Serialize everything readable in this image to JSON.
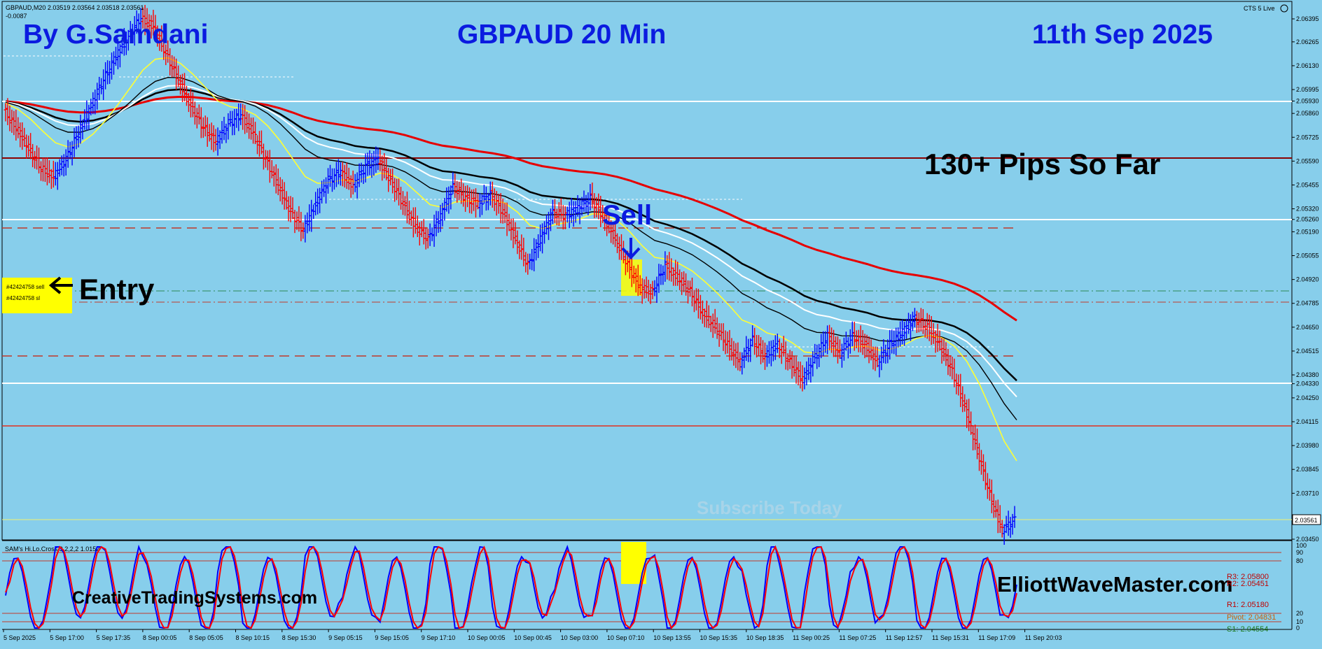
{
  "header": {
    "symbol_info": "GBPAUD,M20  2.03519 2.03564 2.03518 2.03561",
    "sub_info": "-0.0087",
    "broker_label": "CTS 5 Live"
  },
  "overlay": {
    "author": "By G.Samdani",
    "chart_title": "GBPAUD 20 Min",
    "date": "11th Sep 2025",
    "pips": "130+ Pips So Far",
    "sell_label": "Sell",
    "entry_label": "Entry",
    "order_sell": "#42424758 sell",
    "order_sl": "#42424758 sl",
    "watermark": "Subscribe Today",
    "site1": "CreativeTradingSystems.com",
    "site2": "ElliottWaveMaster.com"
  },
  "indicator": {
    "label": "SAM's Hi.Lo.Cross 3,2,2,2 1.0152",
    "scale_labels": [
      "100",
      "90",
      "80",
      "20",
      "10",
      "0"
    ],
    "legend_labels": [
      "R3: 2.05800",
      "R2: 2.05451",
      "R1: 2.05180",
      "Pivot: 2.04831",
      "S1: 2.04554"
    ],
    "colors": {
      "blue": "#0000FF",
      "red": "#FF0000"
    }
  },
  "price_axis": {
    "labels": [
      "2.06395",
      "2.06265",
      "2.06130",
      "2.05995",
      "2.05930",
      "2.05860",
      "2.05725",
      "2.05590",
      "2.05455",
      "2.05320",
      "2.05260",
      "2.05190",
      "2.05055",
      "2.04920",
      "2.04785",
      "2.04650",
      "2.04515",
      "2.04380",
      "2.04330",
      "2.04250",
      "2.04115",
      "2.03980",
      "2.03845",
      "2.03710",
      "2.03561",
      "2.03450"
    ],
    "current_price": "2.03561"
  },
  "time_axis": {
    "labels": [
      "5 Sep 2025",
      "5 Sep 17:00",
      "5 Sep 17:35",
      "8 Sep 00:05",
      "8 Sep 05:05",
      "8 Sep 10:15",
      "8 Sep 15:30",
      "9 Sep 05:15",
      "9 Sep 15:05",
      "9 Sep 17:10",
      "10 Sep 00:05",
      "10 Sep 00:45",
      "10 Sep 03:00",
      "10 Sep 07:10",
      "10 Sep 13:55",
      "10 Sep 15:35",
      "10 Sep 18:35",
      "11 Sep 00:25",
      "11 Sep 07:25",
      "11 Sep 12:57",
      "11 Sep 15:31",
      "11 Sep 17:09",
      "11 Sep 20:03"
    ]
  },
  "colors": {
    "background": "#87CEEB",
    "bull": "#0000FF",
    "bear": "#FF0000",
    "ma_red": "#E60000",
    "ma_black": "#000000",
    "ma_white": "#FFFFFF",
    "ma_yellow": "#FFFF33",
    "text_blue": "#0B1BE0"
  },
  "chart_data": {
    "type": "line",
    "series": [
      {
        "values": [
          2.0588,
          2.0578,
          2.0566,
          2.0555,
          2.055,
          2.056,
          2.0575,
          2.059,
          2.0605,
          2.0618,
          2.063,
          2.064,
          2.0635,
          2.062,
          2.0605,
          2.059,
          2.0578,
          2.057,
          2.058,
          2.0585,
          2.0575,
          2.056,
          2.0545,
          2.053,
          2.052,
          2.0535,
          2.0548,
          2.0553,
          2.0545,
          2.0556,
          2.056,
          2.0548,
          2.0535,
          2.0522,
          2.0515,
          2.0528,
          2.0545,
          2.0538,
          2.0535,
          2.054,
          2.053,
          2.0515,
          2.05,
          2.0515,
          2.053,
          2.0528,
          2.0532,
          2.0538,
          2.0528,
          2.0515,
          2.05,
          2.0487,
          2.0485,
          2.05,
          2.0493,
          2.0485,
          2.0473,
          2.0465,
          2.0455,
          2.0445,
          2.0458,
          2.0448,
          2.0455,
          2.0445,
          2.0435,
          2.0448,
          2.046,
          2.045,
          2.046,
          2.0455,
          2.0445,
          2.0455,
          2.0462,
          2.047,
          2.0465,
          2.0455,
          2.044,
          2.042,
          2.0395,
          2.037,
          2.035,
          2.0356
        ]
      }
    ]
  }
}
